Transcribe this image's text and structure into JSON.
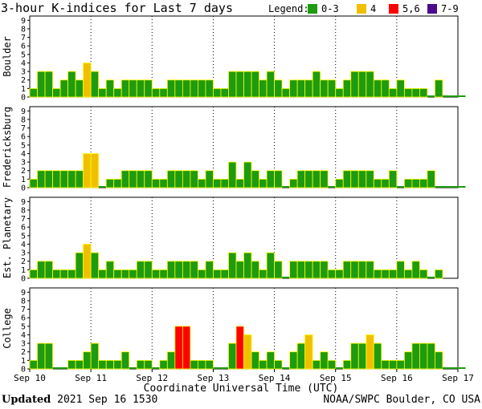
{
  "chart_data": {
    "type": "bar",
    "title": "3-hour K-indices for Last 7 days",
    "legend": {
      "label": "Legend:",
      "placement": "top-right",
      "entries": [
        {
          "label": "0-3",
          "color": "#1e9b0f"
        },
        {
          "label": "4",
          "color": "#f0c000"
        },
        {
          "label": "5,6",
          "color": "#ff0000"
        },
        {
          "label": "7-9",
          "color": "#4b0a90"
        }
      ]
    },
    "xlabel": "Coordinate Universal Time (UTC)",
    "x_ticks": [
      "Sep 10",
      "Sep 11",
      "Sep 12",
      "Sep 13",
      "Sep 14",
      "Sep 15",
      "Sep 16",
      "Sep 17"
    ],
    "ylim": [
      0,
      9
    ],
    "y_ticks": [
      "0",
      "1",
      "2",
      "3",
      "4",
      "5",
      "6",
      "7",
      "8",
      "9"
    ],
    "grid": "dotted vertical at day boundaries",
    "panels": [
      {
        "name": "Boulder",
        "values": [
          1,
          3,
          3,
          1,
          2,
          3,
          2,
          4,
          3,
          1,
          2,
          1,
          2,
          2,
          2,
          2,
          1,
          1,
          2,
          2,
          2,
          2,
          2,
          2,
          1,
          1,
          3,
          3,
          3,
          3,
          2,
          3,
          2,
          1,
          2,
          2,
          2,
          3,
          2,
          2,
          1,
          2,
          3,
          3,
          3,
          2,
          2,
          1,
          2,
          1,
          1,
          1,
          0,
          2,
          0,
          0,
          0
        ]
      },
      {
        "name": "Fredericksburg",
        "values": [
          1,
          2,
          2,
          2,
          2,
          2,
          2,
          4,
          4,
          0,
          1,
          1,
          2,
          2,
          2,
          2,
          1,
          1,
          2,
          2,
          2,
          2,
          1,
          2,
          1,
          1,
          3,
          1,
          3,
          2,
          1,
          2,
          2,
          0,
          1,
          2,
          2,
          2,
          2,
          0,
          1,
          2,
          2,
          2,
          2,
          1,
          1,
          2,
          0,
          1,
          1,
          1,
          2,
          0,
          0,
          0,
          0
        ]
      },
      {
        "name": "Est. Planetary",
        "values": [
          1,
          2,
          2,
          1,
          1,
          1,
          3,
          4,
          3,
          1,
          2,
          1,
          1,
          1,
          2,
          2,
          1,
          1,
          2,
          2,
          2,
          2,
          1,
          2,
          1,
          1,
          3,
          2,
          3,
          2,
          1,
          3,
          2,
          0,
          2,
          2,
          2,
          2,
          2,
          1,
          1,
          2,
          2,
          2,
          2,
          1,
          1,
          1,
          2,
          1,
          2,
          1,
          0,
          1,
          null,
          null,
          null
        ]
      },
      {
        "name": "College",
        "values": [
          1,
          3,
          3,
          0,
          0,
          1,
          1,
          2,
          3,
          1,
          1,
          1,
          2,
          0,
          1,
          1,
          0,
          1,
          2,
          5,
          5,
          1,
          1,
          1,
          0,
          0,
          3,
          5,
          4,
          2,
          1,
          2,
          1,
          0,
          2,
          3,
          4,
          1,
          2,
          1,
          0,
          1,
          3,
          3,
          4,
          3,
          1,
          1,
          1,
          2,
          3,
          3,
          3,
          2,
          0,
          0,
          0
        ]
      }
    ]
  },
  "footer": {
    "updated_label": "Updated",
    "updated_value": "2021 Sep 16 1530",
    "credit": "NOAA/SWPC Boulder, CO USA"
  }
}
